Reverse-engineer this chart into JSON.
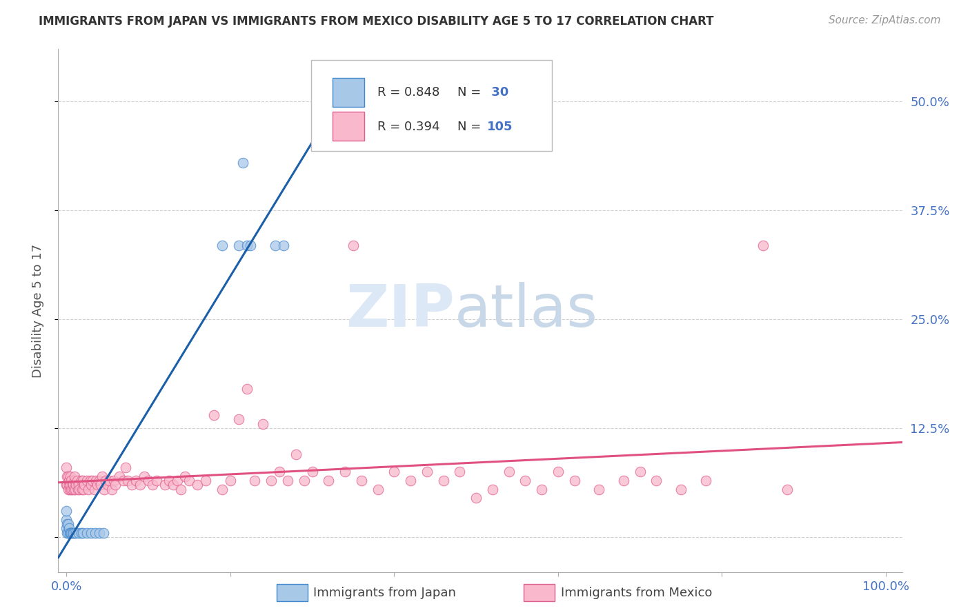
{
  "title": "IMMIGRANTS FROM JAPAN VS IMMIGRANTS FROM MEXICO DISABILITY AGE 5 TO 17 CORRELATION CHART",
  "source": "Source: ZipAtlas.com",
  "ylabel": "Disability Age 5 to 17",
  "xlim": [
    -0.01,
    1.02
  ],
  "ylim": [
    -0.04,
    0.56
  ],
  "xticks": [
    0.0,
    0.2,
    0.4,
    0.6,
    0.8,
    1.0
  ],
  "xticklabels_show": [
    "0.0%",
    "100.0%"
  ],
  "xticklabels_pos": [
    0.0,
    1.0
  ],
  "yticks": [
    0.0,
    0.125,
    0.25,
    0.375,
    0.5
  ],
  "yticklabels": [
    "",
    "12.5%",
    "25.0%",
    "37.5%",
    "50.0%"
  ],
  "japan_fill_color": "#a8c8e8",
  "mexico_fill_color": "#f9b8cb",
  "japan_edge_color": "#4488cc",
  "mexico_edge_color": "#e06090",
  "japan_line_color": "#1a5fa8",
  "mexico_line_color": "#e05080",
  "tick_color": "#4472c4",
  "label_color": "#555555",
  "R_japan": 0.848,
  "N_japan": 30,
  "R_mexico": 0.394,
  "N_mexico": 105,
  "japan_x": [
    0.0,
    0.0,
    0.0,
    0.001,
    0.001,
    0.002,
    0.002,
    0.003,
    0.004,
    0.005,
    0.006,
    0.007,
    0.008,
    0.01,
    0.012,
    0.015,
    0.018,
    0.02,
    0.025,
    0.03,
    0.035,
    0.04,
    0.045,
    0.19,
    0.21,
    0.215,
    0.22,
    0.225,
    0.255,
    0.265
  ],
  "japan_y": [
    0.01,
    0.02,
    0.03,
    0.005,
    0.015,
    0.005,
    0.015,
    0.01,
    0.005,
    0.005,
    0.005,
    0.005,
    0.005,
    0.005,
    0.005,
    0.005,
    0.005,
    0.005,
    0.005,
    0.005,
    0.005,
    0.005,
    0.005,
    0.335,
    0.335,
    0.43,
    0.335,
    0.335,
    0.335,
    0.335
  ],
  "mexico_x": [
    0.0,
    0.0,
    0.001,
    0.001,
    0.002,
    0.002,
    0.003,
    0.003,
    0.004,
    0.005,
    0.005,
    0.006,
    0.006,
    0.007,
    0.008,
    0.009,
    0.01,
    0.01,
    0.011,
    0.012,
    0.013,
    0.014,
    0.015,
    0.016,
    0.018,
    0.019,
    0.02,
    0.021,
    0.022,
    0.025,
    0.027,
    0.029,
    0.03,
    0.032,
    0.034,
    0.036,
    0.038,
    0.04,
    0.042,
    0.044,
    0.046,
    0.048,
    0.05,
    0.052,
    0.055,
    0.058,
    0.06,
    0.065,
    0.07,
    0.072,
    0.075,
    0.08,
    0.085,
    0.09,
    0.095,
    0.1,
    0.105,
    0.11,
    0.12,
    0.125,
    0.13,
    0.135,
    0.14,
    0.145,
    0.15,
    0.16,
    0.17,
    0.18,
    0.19,
    0.2,
    0.21,
    0.22,
    0.23,
    0.24,
    0.25,
    0.26,
    0.27,
    0.28,
    0.29,
    0.3,
    0.32,
    0.34,
    0.35,
    0.36,
    0.38,
    0.4,
    0.42,
    0.44,
    0.46,
    0.48,
    0.5,
    0.52,
    0.54,
    0.56,
    0.58,
    0.6,
    0.62,
    0.65,
    0.68,
    0.7,
    0.72,
    0.75,
    0.78,
    0.85,
    0.88
  ],
  "mexico_y": [
    0.06,
    0.08,
    0.06,
    0.07,
    0.055,
    0.07,
    0.06,
    0.065,
    0.055,
    0.06,
    0.07,
    0.055,
    0.065,
    0.055,
    0.06,
    0.055,
    0.065,
    0.07,
    0.055,
    0.06,
    0.065,
    0.055,
    0.06,
    0.055,
    0.065,
    0.055,
    0.065,
    0.055,
    0.06,
    0.065,
    0.055,
    0.065,
    0.06,
    0.065,
    0.055,
    0.065,
    0.06,
    0.065,
    0.06,
    0.07,
    0.055,
    0.065,
    0.06,
    0.065,
    0.055,
    0.065,
    0.06,
    0.07,
    0.065,
    0.08,
    0.065,
    0.06,
    0.065,
    0.06,
    0.07,
    0.065,
    0.06,
    0.065,
    0.06,
    0.065,
    0.06,
    0.065,
    0.055,
    0.07,
    0.065,
    0.06,
    0.065,
    0.14,
    0.055,
    0.065,
    0.135,
    0.17,
    0.065,
    0.13,
    0.065,
    0.075,
    0.065,
    0.095,
    0.065,
    0.075,
    0.065,
    0.075,
    0.335,
    0.065,
    0.055,
    0.075,
    0.065,
    0.075,
    0.065,
    0.075,
    0.045,
    0.055,
    0.075,
    0.065,
    0.055,
    0.075,
    0.065,
    0.055,
    0.065,
    0.075,
    0.065,
    0.055,
    0.065,
    0.335,
    0.055
  ],
  "watermark_zip": "ZIP",
  "watermark_atlas": "atlas",
  "background_color": "#ffffff",
  "grid_color": "#d0d0d0"
}
